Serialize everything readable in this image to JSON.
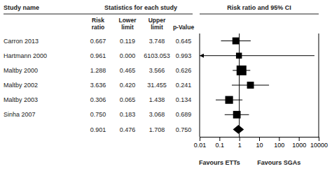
{
  "chart_data": {
    "type": "forest",
    "title": "Risk ratio and 95% CI",
    "table_title": "Statistics for each study",
    "category_header": "Study name",
    "categories": [
      "Carron 2013",
      "Hartmann 2000",
      "Maltby 2000",
      "Maltby 2002",
      "Maltby 2003",
      "Sinha 2007",
      null
    ],
    "columns": [
      {
        "header": [
          "Risk",
          "ratio"
        ],
        "values": [
          0.667,
          0.961,
          1.288,
          3.636,
          0.306,
          0.75,
          0.901
        ],
        "value_labels": [
          "0.667",
          "0.961",
          "1.288",
          "3.636",
          "0.306",
          "0.750",
          "0.901"
        ]
      },
      {
        "header": [
          "Lower",
          "limit"
        ],
        "values": [
          0.119,
          0.0,
          0.465,
          0.42,
          0.065,
          0.183,
          0.476
        ],
        "value_labels": [
          "0.119",
          "0.000",
          "0.465",
          "0.420",
          "0.065",
          "0.183",
          "0.476"
        ]
      },
      {
        "header": [
          "Upper",
          "limit"
        ],
        "values": [
          3.748,
          6103.053,
          3.566,
          31.455,
          1.438,
          3.068,
          1.708
        ],
        "value_labels": [
          "3.748",
          "6103.053",
          "3.566",
          "31.455",
          "1.438",
          "3.068",
          "1.708"
        ]
      },
      {
        "header": [
          "p-Value"
        ],
        "values": [
          0.645,
          0.993,
          0.626,
          0.241,
          0.134,
          0.689,
          0.75
        ],
        "value_labels": [
          "0.645",
          "0.993",
          "0.626",
          "0.241",
          "0.134",
          "0.689",
          "0.750"
        ]
      }
    ],
    "sizes": [
      55,
      40,
      110,
      55,
      70,
      65,
      0
    ],
    "summary": [
      false,
      false,
      false,
      false,
      false,
      false,
      true
    ],
    "reference_line": 1,
    "annotations": [
      "Favours ETTs",
      "Favours SGAs"
    ],
    "log": "x",
    "xlim": [
      0.01,
      10000
    ],
    "xticks": [
      0.01,
      0.1,
      1,
      10,
      100,
      1000,
      10000
    ]
  }
}
